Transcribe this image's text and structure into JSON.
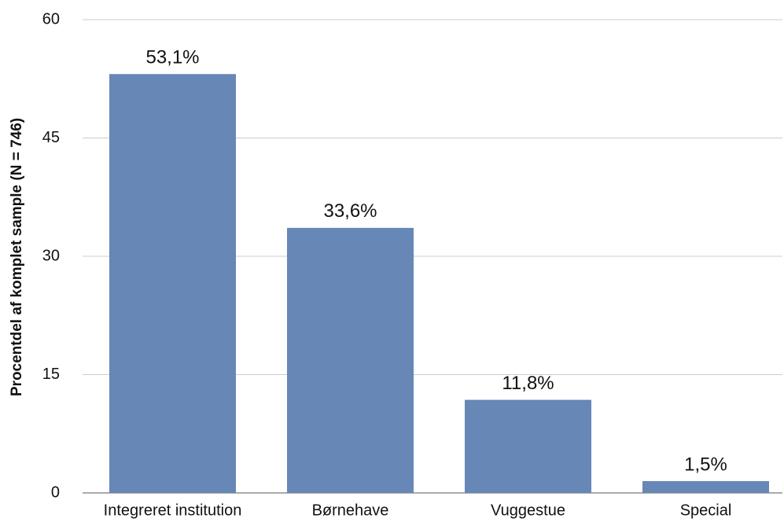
{
  "chart_data": {
    "type": "bar",
    "y_label": "Procentdel af komplet sample  (N = 746)",
    "categories": [
      "Integreret institution",
      "Børnehave",
      "Vuggestue",
      "Special"
    ],
    "values": [
      53.1,
      33.6,
      11.8,
      1.5
    ],
    "value_labels": [
      "53,1%",
      "33,6%",
      "11,8%",
      "1,5%"
    ],
    "color": "#6787b6",
    "ylim": [
      0,
      60
    ],
    "yticks": [
      0,
      15,
      30,
      45,
      60
    ],
    "grid": true
  }
}
